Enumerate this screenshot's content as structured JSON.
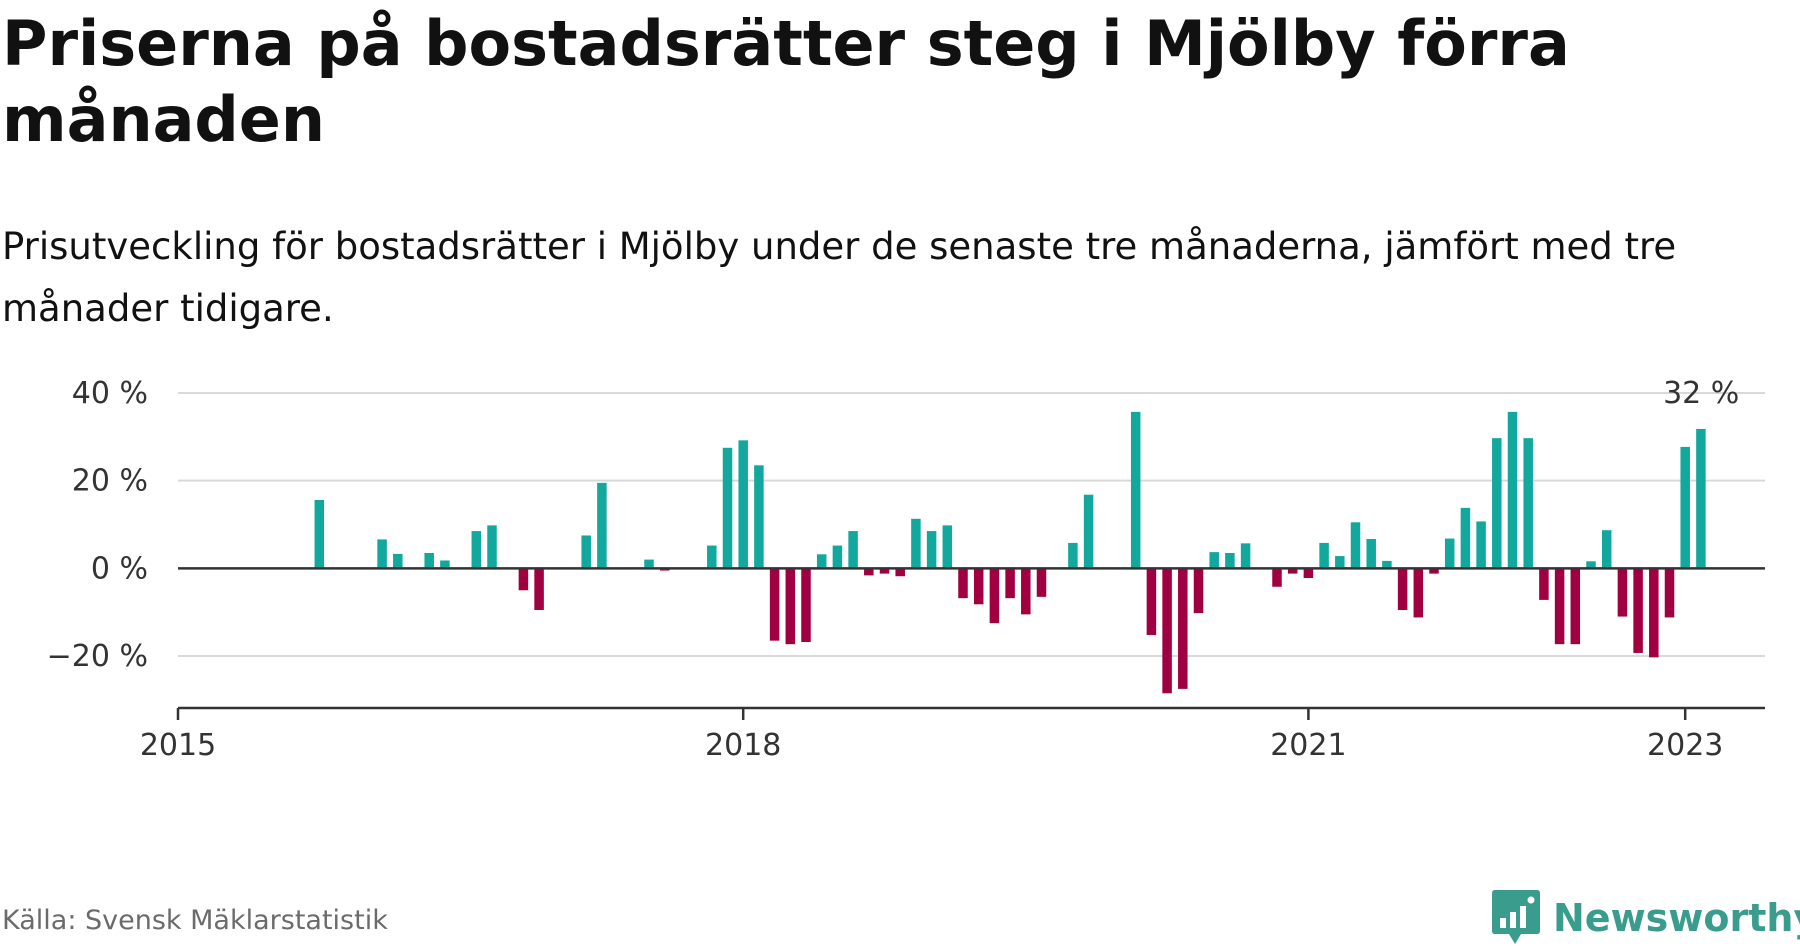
{
  "title": "Priserna på bostadsrätter steg i Mjölby förra månaden",
  "subtitle": "Prisutveckling för bostadsrätter i Mjölby under de senaste tre månaderna, jämfört med tre månader tidigare.",
  "source": "Källa: Svensk Mäklarstatistik",
  "brand": {
    "name": "Newsworthy",
    "icon": "newsworthy-logo-icon"
  },
  "colors": {
    "positive": "#13a89e",
    "negative": "#a0003f",
    "grid": "#d9d9d9",
    "axis": "#333333"
  },
  "chart_data": {
    "type": "bar",
    "title": "Priserna på bostadsrätter steg i Mjölby förra månaden",
    "ylabel": "",
    "xlabel": "",
    "ylim": [
      -33,
      40
    ],
    "xlim": [
      "2015-01",
      "2023-06"
    ],
    "yticks": [
      {
        "value": 40,
        "label": "40 %"
      },
      {
        "value": 20,
        "label": "20 %"
      },
      {
        "value": 0,
        "label": "0 %"
      },
      {
        "value": -20,
        "label": "−20 %"
      }
    ],
    "xticks": [
      {
        "x": "2015-01",
        "label": "2015"
      },
      {
        "x": "2018-01",
        "label": "2018"
      },
      {
        "x": "2021-01",
        "label": "2021"
      },
      {
        "x": "2023-01",
        "label": "2023"
      }
    ],
    "annotation": {
      "x": "2023-01",
      "text": "32 %"
    },
    "grid": true,
    "legend": "none",
    "series": [
      {
        "values": [
          {
            "x": "2015-10",
            "y": 15.6
          },
          {
            "x": "2016-02",
            "y": 6.6
          },
          {
            "x": "2016-03",
            "y": 3.3
          },
          {
            "x": "2016-05",
            "y": 3.5
          },
          {
            "x": "2016-06",
            "y": 1.8
          },
          {
            "x": "2016-08",
            "y": 8.5
          },
          {
            "x": "2016-09",
            "y": 9.8
          },
          {
            "x": "2016-11",
            "y": -5.0
          },
          {
            "x": "2016-12",
            "y": -9.5
          },
          {
            "x": "2017-03",
            "y": 7.5
          },
          {
            "x": "2017-04",
            "y": 19.5
          },
          {
            "x": "2017-07",
            "y": 2.0
          },
          {
            "x": "2017-08",
            "y": -0.5
          },
          {
            "x": "2017-11",
            "y": 5.2
          },
          {
            "x": "2017-12",
            "y": 27.5
          },
          {
            "x": "2018-01",
            "y": 29.2
          },
          {
            "x": "2018-02",
            "y": 23.5
          },
          {
            "x": "2018-03",
            "y": -16.5
          },
          {
            "x": "2018-04",
            "y": -17.3
          },
          {
            "x": "2018-05",
            "y": -16.8
          },
          {
            "x": "2018-06",
            "y": 3.2
          },
          {
            "x": "2018-07",
            "y": 5.2
          },
          {
            "x": "2018-08",
            "y": 8.5
          },
          {
            "x": "2018-09",
            "y": -1.6
          },
          {
            "x": "2018-10",
            "y": -1.2
          },
          {
            "x": "2018-11",
            "y": -1.8
          },
          {
            "x": "2018-12",
            "y": 11.3
          },
          {
            "x": "2019-01",
            "y": 8.5
          },
          {
            "x": "2019-02",
            "y": 9.8
          },
          {
            "x": "2019-03",
            "y": -6.8
          },
          {
            "x": "2019-04",
            "y": -8.2
          },
          {
            "x": "2019-05",
            "y": -12.5
          },
          {
            "x": "2019-06",
            "y": -6.8
          },
          {
            "x": "2019-07",
            "y": -10.5
          },
          {
            "x": "2019-08",
            "y": -6.5
          },
          {
            "x": "2019-10",
            "y": 5.8
          },
          {
            "x": "2019-11",
            "y": 16.8
          },
          {
            "x": "2020-02",
            "y": 35.7
          },
          {
            "x": "2020-03",
            "y": -15.2
          },
          {
            "x": "2020-04",
            "y": -28.5
          },
          {
            "x": "2020-05",
            "y": -27.5
          },
          {
            "x": "2020-06",
            "y": -10.2
          },
          {
            "x": "2020-07",
            "y": 3.7
          },
          {
            "x": "2020-08",
            "y": 3.5
          },
          {
            "x": "2020-09",
            "y": 5.7
          },
          {
            "x": "2020-11",
            "y": -4.2
          },
          {
            "x": "2020-12",
            "y": -1.2
          },
          {
            "x": "2021-01",
            "y": -2.2
          },
          {
            "x": "2021-02",
            "y": 5.8
          },
          {
            "x": "2021-03",
            "y": 2.8
          },
          {
            "x": "2021-04",
            "y": 10.5
          },
          {
            "x": "2021-05",
            "y": 6.7
          },
          {
            "x": "2021-06",
            "y": 1.7
          },
          {
            "x": "2021-07",
            "y": -9.5
          },
          {
            "x": "2021-08",
            "y": -11.2
          },
          {
            "x": "2021-09",
            "y": -1.2
          },
          {
            "x": "2021-10",
            "y": 6.8
          },
          {
            "x": "2021-11",
            "y": 13.8
          },
          {
            "x": "2021-12",
            "y": 10.7
          },
          {
            "x": "2022-01",
            "y": 29.7
          },
          {
            "x": "2022-02",
            "y": 35.7
          },
          {
            "x": "2022-03",
            "y": 29.7
          },
          {
            "x": "2022-04",
            "y": -7.2
          },
          {
            "x": "2022-05",
            "y": -17.3
          },
          {
            "x": "2022-06",
            "y": -17.3
          },
          {
            "x": "2022-07",
            "y": 1.6
          },
          {
            "x": "2022-08",
            "y": 8.7
          },
          {
            "x": "2022-09",
            "y": -11.0
          },
          {
            "x": "2022-10",
            "y": -19.3
          },
          {
            "x": "2022-11",
            "y": -20.3
          },
          {
            "x": "2022-12",
            "y": -11.2
          },
          {
            "x": "2023-01",
            "y": 27.7
          },
          {
            "x": "2023-02",
            "y": 31.8
          }
        ]
      }
    ]
  }
}
